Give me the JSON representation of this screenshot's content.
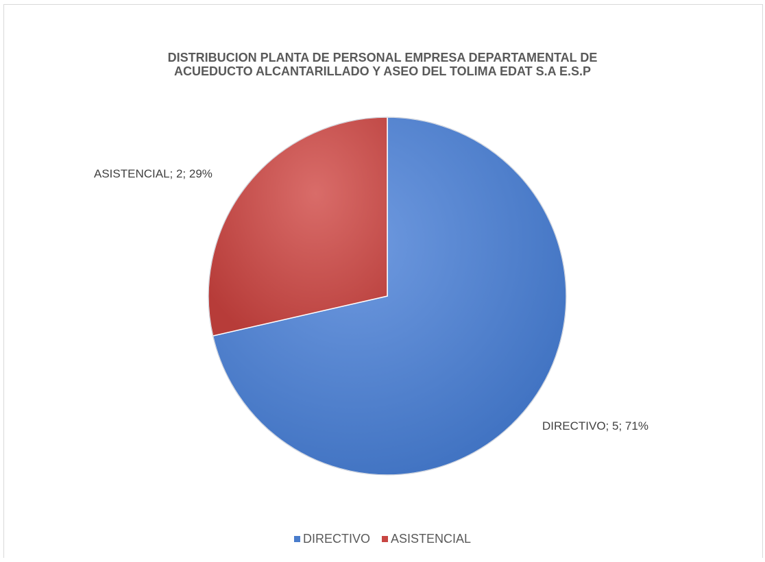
{
  "chart_data": {
    "type": "pie",
    "title_lines": [
      "DISTRIBUCION PLANTA DE PERSONAL EMPRESA DEPARTAMENTAL DE",
      "ACUEDUCTO ALCANTARILLADO Y ASEO DEL TOLIMA EDAT S.A E.S.P"
    ],
    "slices": [
      {
        "label": "DIRECTIVO",
        "value": 5,
        "percent": 71,
        "data_label": "DIRECTIVO; 5; 71%",
        "color": "#4a7dcc"
      },
      {
        "label": "ASISTENCIAL",
        "value": 2,
        "percent": 29,
        "data_label": "ASISTENCIAL; 2; 29%",
        "color": "#c84643"
      }
    ],
    "legend": {
      "position": "bottom",
      "items": [
        {
          "label": "DIRECTIVO",
          "color": "#4a7dcc"
        },
        {
          "label": "ASISTENCIAL",
          "color": "#c84643"
        }
      ]
    }
  }
}
